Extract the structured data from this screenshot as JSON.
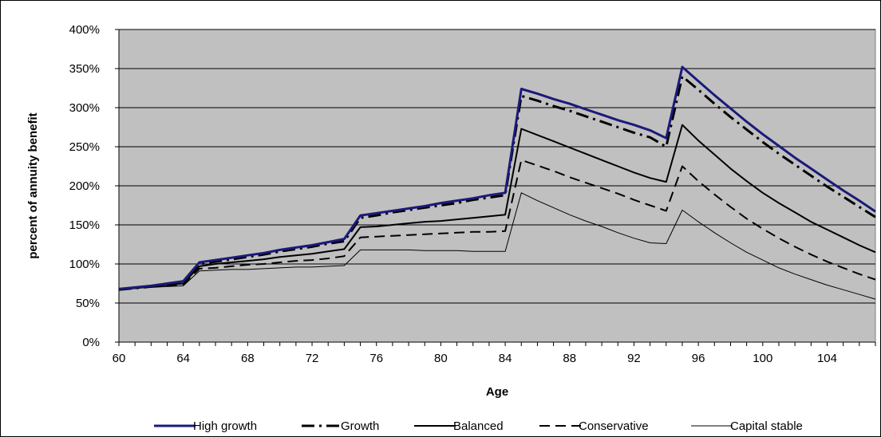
{
  "chart_data": {
    "type": "line",
    "title": "",
    "xlabel": "Age",
    "ylabel": "percent of annuity benefit",
    "xlim": [
      60,
      107
    ],
    "ylim": [
      0,
      400
    ],
    "x_ticks": [
      60,
      64,
      68,
      72,
      76,
      80,
      84,
      88,
      92,
      96,
      100,
      104
    ],
    "y_ticks": [
      0,
      50,
      100,
      150,
      200,
      250,
      300,
      350,
      400
    ],
    "y_tick_labels": [
      "0%",
      "50%",
      "100%",
      "150%",
      "200%",
      "250%",
      "300%",
      "350%",
      "400%"
    ],
    "grid": "horizontal",
    "legend_position": "bottom",
    "plot_background": "#c0c0c0",
    "x": [
      60,
      61,
      62,
      63,
      64,
      65,
      66,
      67,
      68,
      69,
      70,
      71,
      72,
      73,
      74,
      75,
      76,
      77,
      78,
      79,
      80,
      81,
      82,
      83,
      84,
      85,
      86,
      87,
      88,
      89,
      90,
      91,
      92,
      93,
      94,
      95,
      96,
      97,
      98,
      99,
      100,
      101,
      102,
      103,
      104,
      105,
      106,
      107
    ],
    "series": [
      {
        "name": "High growth",
        "color": "#1a1a7a",
        "style": "thick-solid",
        "values": [
          68,
          70,
          72,
          75,
          78,
          102,
          105,
          108,
          111,
          114,
          118,
          121,
          124,
          128,
          132,
          162,
          165,
          168,
          171,
          174,
          178,
          181,
          184,
          188,
          191,
          324,
          318,
          311,
          305,
          298,
          291,
          284,
          278,
          271,
          261,
          352,
          334,
          316,
          299,
          282,
          266,
          251,
          236,
          222,
          208,
          194,
          181,
          167
        ]
      },
      {
        "name": "Growth",
        "color": "#000000",
        "style": "dash-dot",
        "values": [
          67,
          69,
          71,
          74,
          77,
          100,
          103,
          106,
          109,
          112,
          116,
          119,
          122,
          126,
          129,
          159,
          162,
          166,
          169,
          172,
          175,
          178,
          182,
          185,
          188,
          315,
          309,
          302,
          296,
          289,
          282,
          275,
          268,
          262,
          250,
          340,
          323,
          305,
          288,
          272,
          256,
          241,
          227,
          213,
          199,
          186,
          173,
          160
        ]
      },
      {
        "name": "Balanced",
        "color": "#000000",
        "style": "solid",
        "values": [
          67,
          69,
          71,
          73,
          75,
          97,
          100,
          102,
          104,
          106,
          109,
          111,
          113,
          116,
          119,
          147,
          148,
          150,
          152,
          154,
          155,
          157,
          159,
          161,
          163,
          273,
          265,
          257,
          249,
          241,
          233,
          225,
          217,
          210,
          205,
          278,
          258,
          240,
          222,
          206,
          191,
          178,
          166,
          154,
          144,
          134,
          124,
          115
        ]
      },
      {
        "name": "Conservative",
        "color": "#000000",
        "style": "dash",
        "values": [
          67,
          69,
          71,
          72,
          74,
          94,
          95,
          97,
          99,
          100,
          102,
          104,
          105,
          107,
          110,
          134,
          135,
          136,
          137,
          138,
          139,
          140,
          141,
          141,
          142,
          233,
          226,
          219,
          211,
          204,
          197,
          190,
          182,
          175,
          168,
          225,
          206,
          189,
          173,
          158,
          145,
          133,
          122,
          112,
          103,
          95,
          87,
          80
        ]
      },
      {
        "name": "Capital stable",
        "color": "#000000",
        "style": "thin-solid",
        "values": [
          67,
          69,
          70,
          71,
          72,
          91,
          92,
          93,
          93,
          94,
          95,
          96,
          96,
          97,
          98,
          118,
          118,
          118,
          118,
          117,
          117,
          117,
          116,
          116,
          116,
          191,
          181,
          172,
          163,
          155,
          148,
          140,
          133,
          127,
          126,
          169,
          154,
          140,
          127,
          115,
          105,
          95,
          87,
          80,
          73,
          67,
          61,
          55
        ]
      }
    ]
  }
}
